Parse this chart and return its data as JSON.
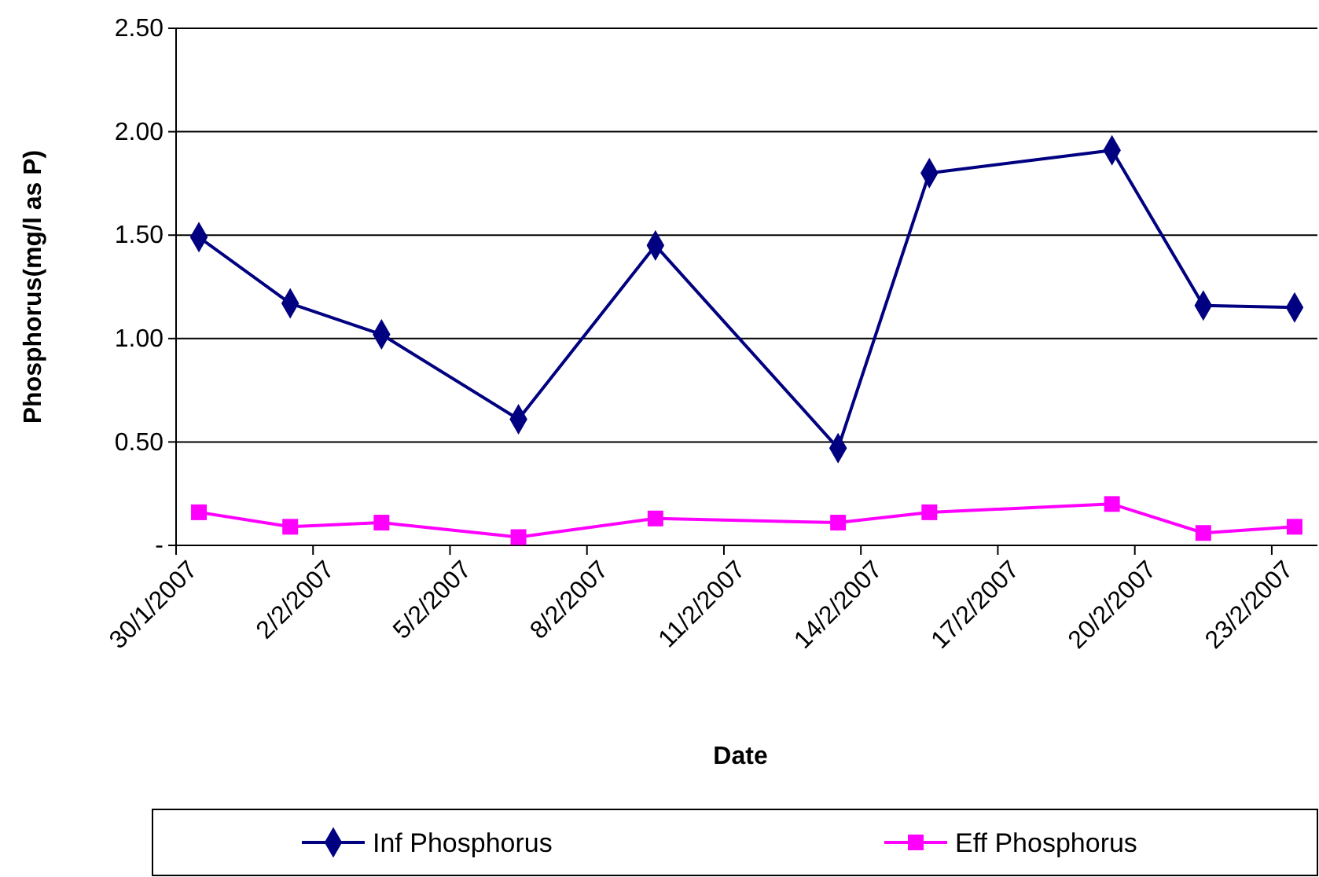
{
  "chart_data": {
    "type": "line",
    "xlabel": "Date",
    "ylabel": "Phosphorus(mg/l as P)",
    "xlim": [
      "2007-01-30",
      "2007-02-24"
    ],
    "xticks": [
      {
        "value": "2007-01-30",
        "label": "30/1/2007"
      },
      {
        "value": "2007-02-02",
        "label": "2/2/2007"
      },
      {
        "value": "2007-02-05",
        "label": "5/2/2007"
      },
      {
        "value": "2007-02-08",
        "label": "8/2/2007"
      },
      {
        "value": "2007-02-11",
        "label": "11/2/2007"
      },
      {
        "value": "2007-02-14",
        "label": "14/2/2007"
      },
      {
        "value": "2007-02-17",
        "label": "17/2/2007"
      },
      {
        "value": "2007-02-20",
        "label": "20/2/2007"
      },
      {
        "value": "2007-02-23",
        "label": "23/2/2007"
      }
    ],
    "ylim": [
      0,
      2.5
    ],
    "yticks": [
      {
        "value": 0,
        "label": "-"
      },
      {
        "value": 0.5,
        "label": "0.50"
      },
      {
        "value": 1,
        "label": "1.00"
      },
      {
        "value": 1.5,
        "label": "1.50"
      },
      {
        "value": 2,
        "label": "2.00"
      },
      {
        "value": 2.5,
        "label": "2.50"
      }
    ],
    "x": [
      "2007-01-30T12:00",
      "2007-02-01T12:00",
      "2007-02-03T12:00",
      "2007-02-06T12:00",
      "2007-02-09T12:00",
      "2007-02-13T12:00",
      "2007-02-15T12:00",
      "2007-02-19T12:00",
      "2007-02-21T12:00",
      "2007-02-23T12:00"
    ],
    "grid": "y",
    "legend": "bottom",
    "line_style": "solid",
    "series": [
      {
        "name": "Inf Phosphorus",
        "color": "#000080",
        "marker": "diamond",
        "values": [
          1.49,
          1.17,
          1.02,
          0.61,
          1.45,
          0.47,
          1.8,
          1.91,
          1.16,
          1.15
        ]
      },
      {
        "name": "Eff Phosphorus",
        "color": "#ff00ff",
        "marker": "square",
        "values": [
          0.16,
          0.09,
          0.11,
          0.04,
          0.13,
          0.11,
          0.16,
          0.2,
          0.06,
          0.09
        ]
      }
    ]
  }
}
